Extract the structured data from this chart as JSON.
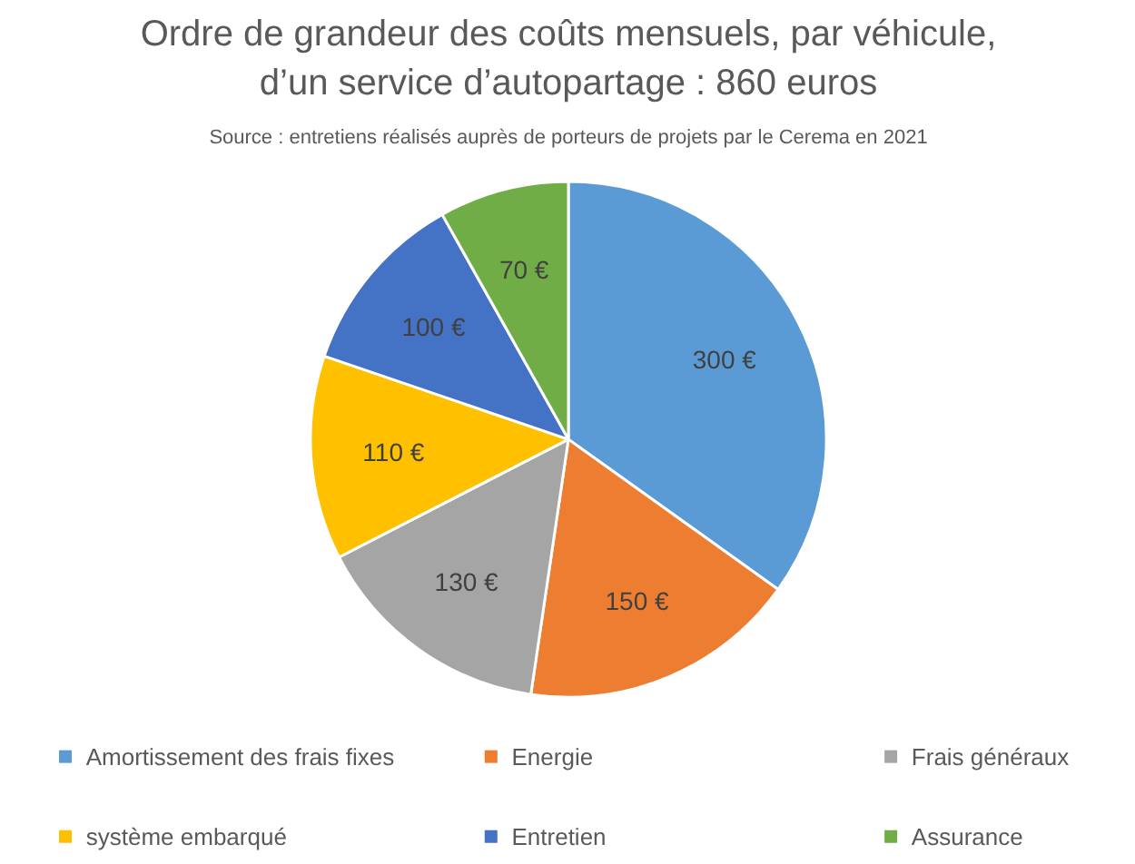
{
  "chart_data": {
    "type": "pie",
    "title": "Ordre de grandeur des coûts mensuels, par véhicule, d’un service d’autopartage : 860 euros",
    "annotations": [
      "Source : entretiens réalisés auprès de porteurs de projets par le Cerema en 2021"
    ],
    "categories": [
      "Amortissement des frais fixes",
      "Energie",
      "Frais généraux",
      "système embarqué",
      "Entretien",
      "Assurance"
    ],
    "values": [
      300,
      150,
      130,
      110,
      100,
      70
    ],
    "colors": [
      "#5b9bd5",
      "#ed7d31",
      "#a5a5a5",
      "#ffc000",
      "#4472c4",
      "#70ad47"
    ],
    "value_labels": [
      "300 €",
      "150 €",
      "130 €",
      "110 €",
      "100 €",
      "70 €"
    ],
    "legend": "bottom"
  }
}
